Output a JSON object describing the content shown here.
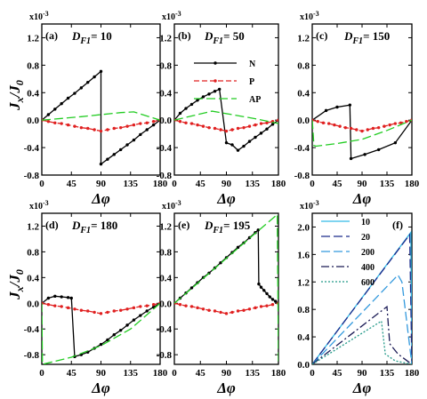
{
  "figure": {
    "ylabel_main": "J",
    "ylabel_sub": "x",
    "ylabel_rest": "/J",
    "ylabel_sub2": "0",
    "xlabel": "Δφ",
    "exponent_base": "x10",
    "exponent_power": "-3"
  },
  "chart_data": [
    {
      "type": "line",
      "panel": "(a)",
      "title_prefix": "D",
      "title_sub": "F1",
      "title_value": "= 10",
      "xlim": [
        0,
        180
      ],
      "ylim": [
        -0.8,
        1.4
      ],
      "xticks": [
        "0",
        "45",
        "90",
        "135",
        "180"
      ],
      "yticks": [
        "-0.8",
        "-0.4",
        "0.0",
        "0.4",
        "0.8",
        "1.2"
      ],
      "legend": [],
      "series": [
        {
          "name": "N",
          "color": "#000000",
          "style": "solid",
          "marker": true,
          "x": [
            0,
            10,
            20,
            30,
            40,
            50,
            60,
            70,
            80,
            90,
            90,
            100,
            110,
            120,
            130,
            140,
            150,
            160,
            170,
            180
          ],
          "y": [
            0,
            0.08,
            0.16,
            0.24,
            0.32,
            0.39,
            0.47,
            0.55,
            0.63,
            0.71,
            -0.64,
            -0.57,
            -0.5,
            -0.43,
            -0.36,
            -0.29,
            -0.21,
            -0.14,
            -0.07,
            0
          ]
        },
        {
          "name": "P",
          "color": "#e02020",
          "style": "dash",
          "marker": true,
          "x": [
            0,
            10,
            20,
            30,
            40,
            50,
            60,
            70,
            80,
            90,
            100,
            110,
            120,
            130,
            140,
            150,
            160,
            170,
            180
          ],
          "y": [
            0,
            -0.02,
            -0.04,
            -0.05,
            -0.07,
            -0.09,
            -0.11,
            -0.12,
            -0.14,
            -0.16,
            -0.14,
            -0.12,
            -0.11,
            -0.09,
            -0.07,
            -0.05,
            -0.04,
            -0.02,
            0
          ]
        },
        {
          "name": "AP",
          "color": "#22cc22",
          "style": "longdash",
          "marker": false,
          "x": [
            0,
            30,
            60,
            90,
            120,
            140,
            180
          ],
          "y": [
            0,
            0.025,
            0.05,
            0.08,
            0.11,
            0.12,
            0
          ]
        }
      ]
    },
    {
      "type": "line",
      "panel": "(b)",
      "title_prefix": "D",
      "title_sub": "F1",
      "title_value": "= 50",
      "xlim": [
        0,
        180
      ],
      "ylim": [
        -0.8,
        1.4
      ],
      "xticks": [
        "0",
        "45",
        "90",
        "135",
        "180"
      ],
      "yticks": [
        "-0.8",
        "-0.4",
        "0.0",
        "0.4",
        "0.8",
        "1.2"
      ],
      "legend": [
        "N",
        "P",
        "AP"
      ],
      "series": [
        {
          "name": "N",
          "color": "#000000",
          "style": "solid",
          "marker": true,
          "x": [
            0,
            10,
            20,
            30,
            40,
            50,
            60,
            70,
            78,
            90,
            100,
            110,
            120,
            130,
            140,
            150,
            160,
            170,
            180
          ],
          "y": [
            0,
            0.1,
            0.17,
            0.23,
            0.29,
            0.34,
            0.38,
            0.42,
            0.45,
            -0.33,
            -0.36,
            -0.44,
            -0.38,
            -0.31,
            -0.25,
            -0.19,
            -0.13,
            -0.06,
            0
          ]
        },
        {
          "name": "P",
          "color": "#e02020",
          "style": "dash",
          "marker": true,
          "x": [
            0,
            10,
            20,
            30,
            40,
            50,
            60,
            70,
            80,
            90,
            100,
            110,
            120,
            130,
            140,
            150,
            160,
            170,
            180
          ],
          "y": [
            0,
            -0.02,
            -0.04,
            -0.05,
            -0.07,
            -0.09,
            -0.11,
            -0.12,
            -0.14,
            -0.16,
            -0.14,
            -0.12,
            -0.11,
            -0.09,
            -0.07,
            -0.05,
            -0.04,
            -0.02,
            0
          ]
        },
        {
          "name": "AP",
          "color": "#22cc22",
          "style": "longdash",
          "marker": false,
          "x": [
            0,
            30,
            65,
            100,
            140,
            180
          ],
          "y": [
            0,
            0.06,
            0.13,
            0.08,
            0.02,
            -0.05
          ]
        }
      ]
    },
    {
      "type": "line",
      "panel": "(c)",
      "title_prefix": "D",
      "title_sub": "F1",
      "title_value": "= 150",
      "xlim": [
        0,
        180
      ],
      "ylim": [
        -0.8,
        1.4
      ],
      "xticks": [
        "0",
        "45",
        "90",
        "135",
        "180"
      ],
      "yticks": [
        "-0.8",
        "-0.4",
        "0.0",
        "0.4",
        "0.8",
        "1.2"
      ],
      "legend": [],
      "series": [
        {
          "name": "N",
          "color": "#000000",
          "style": "solid",
          "marker": true,
          "x": [
            0,
            25,
            45,
            68,
            70,
            95,
            120,
            150,
            180
          ],
          "y": [
            0,
            0.14,
            0.19,
            0.22,
            -0.56,
            -0.5,
            -0.43,
            -0.33,
            0
          ]
        },
        {
          "name": "P",
          "color": "#e02020",
          "style": "dash",
          "marker": true,
          "x": [
            0,
            10,
            20,
            30,
            40,
            50,
            60,
            70,
            80,
            90,
            100,
            110,
            120,
            130,
            140,
            150,
            160,
            170,
            180
          ],
          "y": [
            0,
            -0.02,
            -0.04,
            -0.05,
            -0.07,
            -0.09,
            -0.11,
            -0.12,
            -0.14,
            -0.16,
            -0.14,
            -0.12,
            -0.11,
            -0.09,
            -0.07,
            -0.05,
            -0.04,
            -0.02,
            0
          ]
        },
        {
          "name": "AP",
          "color": "#22cc22",
          "style": "longdash",
          "marker": false,
          "x": [
            0,
            3,
            7,
            45,
            90,
            135,
            180
          ],
          "y": [
            0,
            -0.37,
            -0.38,
            -0.34,
            -0.28,
            -0.15,
            0
          ]
        }
      ]
    },
    {
      "type": "line",
      "panel": "(d)",
      "title_prefix": "D",
      "title_sub": "F1",
      "title_value": "= 180",
      "xlim": [
        0,
        180
      ],
      "ylim": [
        -0.95,
        1.4
      ],
      "xticks": [
        "0",
        "45",
        "90",
        "135",
        "180"
      ],
      "yticks": [
        "-0.8",
        "-0.4",
        "0.0",
        "0.4",
        "0.8",
        "1.2"
      ],
      "legend": [],
      "series": [
        {
          "name": "N",
          "color": "#000000",
          "style": "solid",
          "marker": true,
          "x": [
            0,
            10,
            20,
            30,
            40,
            45,
            50,
            60,
            70,
            80,
            90,
            100,
            110,
            120,
            130,
            140,
            150,
            160,
            170,
            180
          ],
          "y": [
            0,
            0.08,
            0.11,
            0.1,
            0.09,
            0.08,
            -0.83,
            -0.8,
            -0.76,
            -0.7,
            -0.64,
            -0.57,
            -0.49,
            -0.42,
            -0.34,
            -0.26,
            -0.19,
            -0.12,
            -0.06,
            0
          ]
        },
        {
          "name": "P",
          "color": "#e02020",
          "style": "dash",
          "marker": true,
          "x": [
            0,
            10,
            20,
            30,
            40,
            50,
            60,
            70,
            80,
            90,
            100,
            110,
            120,
            130,
            140,
            150,
            160,
            170,
            180
          ],
          "y": [
            0,
            -0.02,
            -0.04,
            -0.05,
            -0.07,
            -0.09,
            -0.11,
            -0.12,
            -0.14,
            -0.16,
            -0.14,
            -0.12,
            -0.11,
            -0.09,
            -0.07,
            -0.05,
            -0.04,
            -0.02,
            0
          ]
        },
        {
          "name": "AP",
          "color": "#22cc22",
          "style": "longdash",
          "marker": false,
          "x": [
            0,
            1,
            45,
            90,
            135,
            180
          ],
          "y": [
            0,
            -0.95,
            -0.84,
            -0.66,
            -0.4,
            0
          ]
        }
      ]
    },
    {
      "type": "line",
      "panel": "(e)",
      "title_prefix": "D",
      "title_sub": "F1",
      "title_value": "= 195",
      "xlim": [
        0,
        180
      ],
      "ylim": [
        -0.95,
        1.4
      ],
      "xticks": [
        "0",
        "45",
        "90",
        "135",
        "180"
      ],
      "yticks": [
        "-0.8",
        "-0.4",
        "0.0",
        "0.4",
        "0.8",
        "1.2"
      ],
      "legend": [],
      "series": [
        {
          "name": "N",
          "color": "#000000",
          "style": "solid",
          "marker": true,
          "x": [
            0,
            10,
            20,
            30,
            40,
            50,
            60,
            70,
            80,
            90,
            100,
            110,
            120,
            130,
            140,
            145,
            146,
            150,
            155,
            160,
            165,
            170,
            175,
            180
          ],
          "y": [
            0,
            0.08,
            0.16,
            0.24,
            0.32,
            0.4,
            0.47,
            0.55,
            0.63,
            0.71,
            0.79,
            0.87,
            0.94,
            1.02,
            1.1,
            1.14,
            0.3,
            0.25,
            0.2,
            0.15,
            0.1,
            0.06,
            0.03,
            0
          ]
        },
        {
          "name": "P",
          "color": "#e02020",
          "style": "dash",
          "marker": true,
          "x": [
            0,
            10,
            20,
            30,
            40,
            50,
            60,
            70,
            80,
            90,
            100,
            110,
            120,
            130,
            140,
            150,
            160,
            170,
            180
          ],
          "y": [
            0,
            -0.02,
            -0.04,
            -0.05,
            -0.07,
            -0.09,
            -0.11,
            -0.12,
            -0.14,
            -0.16,
            -0.14,
            -0.12,
            -0.11,
            -0.09,
            -0.07,
            -0.05,
            -0.04,
            -0.02,
            0
          ]
        },
        {
          "name": "AP",
          "color": "#22cc22",
          "style": "longdash",
          "marker": false,
          "x": [
            0,
            45,
            90,
            135,
            178,
            180
          ],
          "y": [
            0,
            0.35,
            0.7,
            1.05,
            1.38,
            -0.95
          ]
        }
      ]
    },
    {
      "type": "line",
      "panel": "(f)",
      "xlim": [
        0,
        180
      ],
      "ylim": [
        0,
        2.2
      ],
      "xticks": [
        "0",
        "45",
        "90",
        "135",
        "180"
      ],
      "yticks": [
        "0.0",
        "0.4",
        "0.8",
        "1.2",
        "1.6",
        "2.0"
      ],
      "legend": [
        "10",
        "20",
        "200",
        "400",
        "600"
      ],
      "series": [
        {
          "name": "10",
          "color": "#33bbe8",
          "style": "solid",
          "marker": false,
          "x": [
            0,
            178,
            180
          ],
          "y": [
            0,
            1.92,
            0
          ]
        },
        {
          "name": "20",
          "color": "#1a2a8a",
          "style": "longdash",
          "marker": false,
          "x": [
            0,
            176,
            180
          ],
          "y": [
            0,
            1.89,
            0
          ]
        },
        {
          "name": "200",
          "color": "#3399dd",
          "style": "longdash",
          "marker": false,
          "x": [
            0,
            155,
            162,
            180
          ],
          "y": [
            0,
            1.3,
            1.2,
            0
          ]
        },
        {
          "name": "400",
          "color": "#1a1a55",
          "style": "dashdot",
          "marker": false,
          "x": [
            0,
            135,
            140,
            155,
            180
          ],
          "y": [
            0,
            0.84,
            0.3,
            0.15,
            0
          ]
        },
        {
          "name": "600",
          "color": "#229988",
          "style": "dot",
          "marker": false,
          "x": [
            0,
            125,
            132,
            150,
            180
          ],
          "y": [
            0,
            0.63,
            0.15,
            0.05,
            0
          ]
        }
      ]
    }
  ]
}
